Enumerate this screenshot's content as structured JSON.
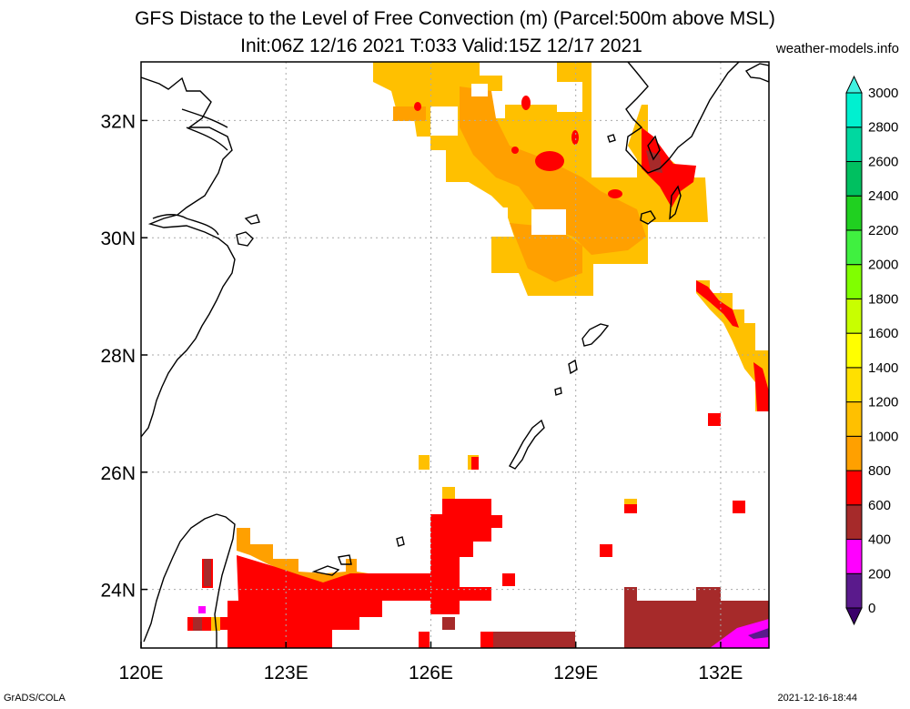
{
  "title_line1": "GFS Distace to the Level of Free Convection (m) (Parcel:500m above MSL)",
  "title_line2": "Init:06Z 12/16 2021 T:033 Valid:15Z 12/17 2021",
  "credit": "weather-models.info",
  "footer_left": "GrADS/COLA",
  "footer_right": "2021-12-16-18:44",
  "map": {
    "lon_range": [
      120,
      133
    ],
    "lat_range": [
      23,
      33
    ],
    "x_ticks": [
      {
        "value": 120,
        "label": "120E"
      },
      {
        "value": 123,
        "label": "123E"
      },
      {
        "value": 126,
        "label": "126E"
      },
      {
        "value": 129,
        "label": "129E"
      },
      {
        "value": 132,
        "label": "132E"
      }
    ],
    "y_ticks": [
      {
        "value": 24,
        "label": "24N"
      },
      {
        "value": 26,
        "label": "26N"
      },
      {
        "value": 28,
        "label": "28N"
      },
      {
        "value": 30,
        "label": "30N"
      },
      {
        "value": 32,
        "label": "32N"
      }
    ],
    "grid": true
  },
  "colorbar": {
    "levels": [
      "0",
      "200",
      "400",
      "600",
      "800",
      "1000",
      "1200",
      "1400",
      "1600",
      "1800",
      "2000",
      "2200",
      "2400",
      "2600",
      "2800",
      "3000"
    ],
    "colors": [
      "#5a1a8c",
      "#ff00ff",
      "#a62a2a",
      "#ff0000",
      "#ffa000",
      "#ffc000",
      "#ffe000",
      "#ffff00",
      "#c8ff00",
      "#80ff00",
      "#40f040",
      "#20d020",
      "#00c060",
      "#00d8a0",
      "#00f0d0"
    ],
    "under_color": "#3a006a",
    "over_color": "#40f0e0"
  },
  "fields": {
    "colors": {
      "c200": "#ff00ff",
      "c400": "#a62a2a",
      "c600": "#ff0000",
      "c800": "#ffa000",
      "c1000": "#ffc000"
    }
  }
}
